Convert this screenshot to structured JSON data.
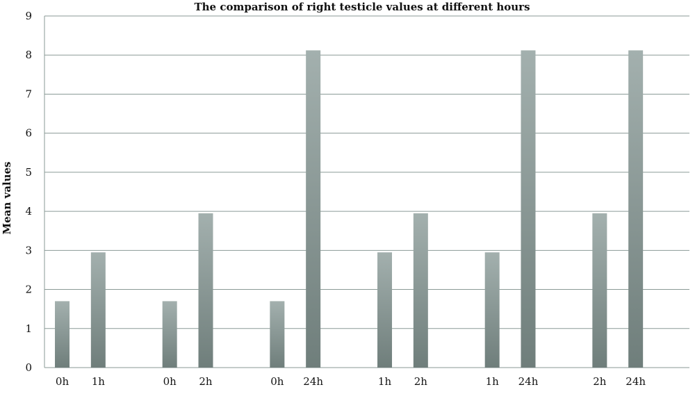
{
  "chart_data": {
    "type": "bar",
    "title": "The comparison of right testicle values at different hours",
    "xlabel": "",
    "ylabel": "Mean values",
    "ylim": [
      0,
      9
    ],
    "yticks": [
      "0",
      "1",
      "2",
      "3",
      "4",
      "5",
      "6",
      "7",
      "8",
      "9"
    ],
    "grid": true,
    "legend": false,
    "bar_color_top": "#a3b0ae",
    "bar_color_bottom": "#6f7e7b",
    "groups": [
      {
        "bars": [
          {
            "label": "0h",
            "value": 1.7
          },
          {
            "label": "1h",
            "value": 2.95
          }
        ]
      },
      {
        "bars": [
          {
            "label": "0h",
            "value": 1.7
          },
          {
            "label": "2h",
            "value": 3.95
          }
        ]
      },
      {
        "bars": [
          {
            "label": "0h",
            "value": 1.7
          },
          {
            "label": "24h",
            "value": 8.12
          }
        ]
      },
      {
        "bars": [
          {
            "label": "1h",
            "value": 2.95
          },
          {
            "label": "2h",
            "value": 3.95
          }
        ]
      },
      {
        "bars": [
          {
            "label": "1h",
            "value": 2.95
          },
          {
            "label": "24h",
            "value": 8.12
          }
        ]
      },
      {
        "bars": [
          {
            "label": "2h",
            "value": 3.95
          },
          {
            "label": "24h",
            "value": 8.12
          }
        ]
      }
    ]
  }
}
